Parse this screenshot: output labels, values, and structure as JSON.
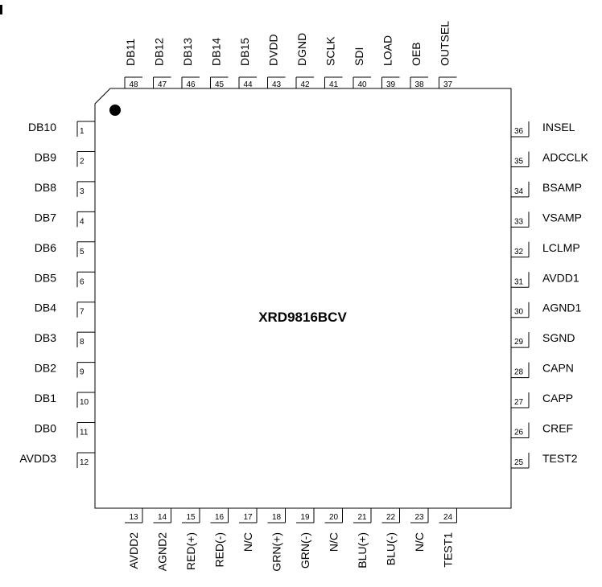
{
  "chip": {
    "part_number": "XRD9816BCV"
  },
  "pins": {
    "left": [
      {
        "num": "1",
        "name": "DB10"
      },
      {
        "num": "2",
        "name": "DB9"
      },
      {
        "num": "3",
        "name": "DB8"
      },
      {
        "num": "4",
        "name": "DB7"
      },
      {
        "num": "5",
        "name": "DB6"
      },
      {
        "num": "6",
        "name": "DB5"
      },
      {
        "num": "7",
        "name": "DB4"
      },
      {
        "num": "8",
        "name": "DB3"
      },
      {
        "num": "9",
        "name": "DB2"
      },
      {
        "num": "10",
        "name": "DB1"
      },
      {
        "num": "11",
        "name": "DB0"
      },
      {
        "num": "12",
        "name": "AVDD3"
      }
    ],
    "bottom": [
      {
        "num": "13",
        "name": "AVDD2"
      },
      {
        "num": "14",
        "name": "AGND2"
      },
      {
        "num": "15",
        "name": "RED(+)"
      },
      {
        "num": "16",
        "name": "RED(-)"
      },
      {
        "num": "17",
        "name": "N/C"
      },
      {
        "num": "18",
        "name": "GRN(+)"
      },
      {
        "num": "19",
        "name": "GRN(-)"
      },
      {
        "num": "20",
        "name": "N/C"
      },
      {
        "num": "21",
        "name": "BLU(+)"
      },
      {
        "num": "22",
        "name": "BLU(-)"
      },
      {
        "num": "23",
        "name": "N/C"
      },
      {
        "num": "24",
        "name": "TEST1"
      }
    ],
    "right": [
      {
        "num": "25",
        "name": "TEST2"
      },
      {
        "num": "26",
        "name": "CREF"
      },
      {
        "num": "27",
        "name": "CAPP"
      },
      {
        "num": "28",
        "name": "CAPN"
      },
      {
        "num": "29",
        "name": "SGND"
      },
      {
        "num": "30",
        "name": "AGND1"
      },
      {
        "num": "31",
        "name": "AVDD1"
      },
      {
        "num": "32",
        "name": "LCLMP"
      },
      {
        "num": "33",
        "name": "VSAMP"
      },
      {
        "num": "34",
        "name": "BSAMP"
      },
      {
        "num": "35",
        "name": "ADCCLK"
      },
      {
        "num": "36",
        "name": "INSEL"
      }
    ],
    "top": [
      {
        "num": "37",
        "name": "OUTSEL"
      },
      {
        "num": "38",
        "name": "OEB"
      },
      {
        "num": "39",
        "name": "LOAD"
      },
      {
        "num": "40",
        "name": "SDI"
      },
      {
        "num": "41",
        "name": "SCLK"
      },
      {
        "num": "42",
        "name": "DGND"
      },
      {
        "num": "43",
        "name": "DVDD"
      },
      {
        "num": "44",
        "name": "DB15"
      },
      {
        "num": "45",
        "name": "DB14"
      },
      {
        "num": "46",
        "name": "DB13"
      },
      {
        "num": "47",
        "name": "DB12"
      },
      {
        "num": "48",
        "name": "DB11"
      }
    ]
  }
}
